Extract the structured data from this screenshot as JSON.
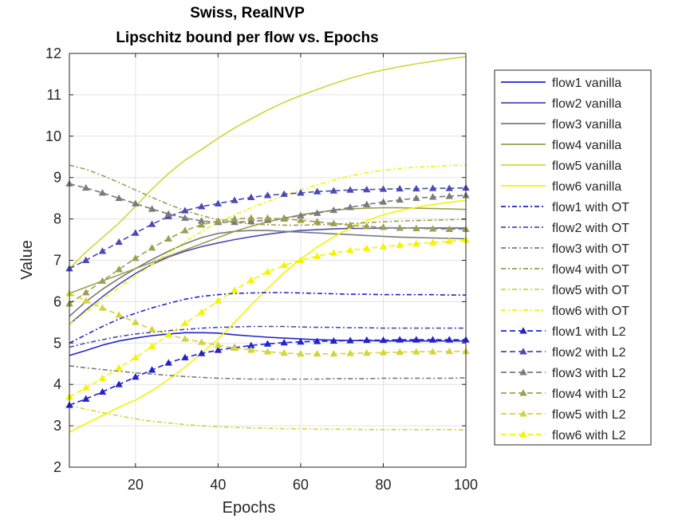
{
  "chart_data": {
    "type": "line",
    "title": [
      "Swiss, RealNVP",
      "Lipschitz bound per flow vs. Epochs"
    ],
    "xlabel": "Epochs",
    "ylabel": "Value",
    "xlim": [
      4,
      100
    ],
    "ylim": [
      2,
      12
    ],
    "xticks": [
      20,
      40,
      60,
      80,
      100
    ],
    "yticks": [
      2,
      3,
      4,
      5,
      6,
      7,
      8,
      9,
      10,
      11,
      12
    ],
    "xtick_labels": [
      "20",
      "40",
      "60",
      "80",
      "100"
    ],
    "ytick_labels": [
      "2",
      "3",
      "4",
      "5",
      "6",
      "7",
      "8",
      "9",
      "10",
      "11",
      "12"
    ],
    "grid": true,
    "legend_position": "outside-right",
    "x": [
      4,
      8,
      12,
      16,
      20,
      24,
      28,
      32,
      36,
      40,
      44,
      48,
      52,
      56,
      60,
      64,
      68,
      72,
      76,
      80,
      84,
      88,
      92,
      96,
      100
    ],
    "series": [
      {
        "name": "flow1 vanilla",
        "color": "#2222cc",
        "style": "solid",
        "marker": "none",
        "values": [
          4.7,
          4.82,
          4.95,
          5.05,
          5.12,
          5.18,
          5.22,
          5.25,
          5.25,
          5.24,
          5.2,
          5.17,
          5.14,
          5.12,
          5.1,
          5.08,
          5.07,
          5.06,
          5.06,
          5.05,
          5.05,
          5.05,
          5.05,
          5.05,
          5.05
        ]
      },
      {
        "name": "flow2 vanilla",
        "color": "#4a4ab5",
        "style": "solid",
        "marker": "none",
        "values": [
          5.45,
          5.8,
          6.12,
          6.42,
          6.68,
          6.9,
          7.08,
          7.22,
          7.33,
          7.42,
          7.5,
          7.57,
          7.63,
          7.68,
          7.72,
          7.74,
          7.76,
          7.77,
          7.77,
          7.78,
          7.78,
          7.78,
          7.78,
          7.78,
          7.78
        ]
      },
      {
        "name": "flow3 vanilla",
        "color": "#7a7a7a",
        "style": "solid",
        "marker": "none",
        "values": [
          5.65,
          6.0,
          6.3,
          6.56,
          6.8,
          7.02,
          7.22,
          7.4,
          7.55,
          7.65,
          7.7,
          7.72,
          7.72,
          7.7,
          7.68,
          7.66,
          7.64,
          7.62,
          7.6,
          7.58,
          7.56,
          7.55,
          7.54,
          7.53,
          7.52
        ]
      },
      {
        "name": "flow4 vanilla",
        "color": "#9e9e50",
        "style": "solid",
        "marker": "none",
        "values": [
          6.2,
          6.35,
          6.5,
          6.65,
          6.8,
          6.95,
          7.1,
          7.25,
          7.4,
          7.55,
          7.7,
          7.82,
          7.93,
          8.02,
          8.1,
          8.16,
          8.21,
          8.24,
          8.26,
          8.27,
          8.27,
          8.26,
          8.25,
          8.24,
          8.23
        ]
      },
      {
        "name": "flow5 vanilla",
        "color": "#d4d43a",
        "style": "solid",
        "marker": "none",
        "values": [
          6.8,
          7.2,
          7.55,
          7.9,
          8.3,
          8.72,
          9.1,
          9.42,
          9.68,
          9.95,
          10.2,
          10.42,
          10.63,
          10.82,
          10.98,
          11.13,
          11.27,
          11.4,
          11.51,
          11.6,
          11.68,
          11.75,
          11.81,
          11.87,
          11.92
        ]
      },
      {
        "name": "flow6 vanilla",
        "color": "#f4f400",
        "style": "solid",
        "marker": "none",
        "values": [
          2.85,
          3.05,
          3.25,
          3.45,
          3.62,
          3.85,
          4.12,
          4.42,
          4.75,
          5.1,
          5.5,
          5.92,
          6.32,
          6.7,
          7.03,
          7.32,
          7.57,
          7.78,
          7.96,
          8.1,
          8.2,
          8.28,
          8.35,
          8.4,
          8.45
        ]
      },
      {
        "name": "flow1 with OT",
        "color": "#2222cc",
        "style": "dashdot",
        "marker": "none",
        "values": [
          5.0,
          5.2,
          5.4,
          5.58,
          5.72,
          5.85,
          5.96,
          6.06,
          6.13,
          6.17,
          6.2,
          6.21,
          6.22,
          6.22,
          6.21,
          6.2,
          6.19,
          6.18,
          6.18,
          6.17,
          6.17,
          6.17,
          6.17,
          6.16,
          6.16
        ]
      },
      {
        "name": "flow2 with OT",
        "color": "#4a4ab5",
        "style": "dashdot",
        "marker": "none",
        "values": [
          4.9,
          5.0,
          5.08,
          5.16,
          5.22,
          5.26,
          5.3,
          5.33,
          5.36,
          5.38,
          5.39,
          5.4,
          5.4,
          5.4,
          5.39,
          5.38,
          5.38,
          5.37,
          5.37,
          5.36,
          5.36,
          5.36,
          5.36,
          5.36,
          5.36
        ]
      },
      {
        "name": "flow3 with OT",
        "color": "#7a7a7a",
        "style": "dashdot",
        "marker": "none",
        "values": [
          4.45,
          4.4,
          4.36,
          4.32,
          4.28,
          4.25,
          4.22,
          4.19,
          4.17,
          4.15,
          4.14,
          4.13,
          4.13,
          4.13,
          4.13,
          4.13,
          4.14,
          4.14,
          4.14,
          4.15,
          4.15,
          4.15,
          4.15,
          4.15,
          4.16
        ]
      },
      {
        "name": "flow4 with OT",
        "color": "#9e9e50",
        "style": "dashdot",
        "marker": "none",
        "values": [
          9.3,
          9.2,
          9.05,
          8.88,
          8.7,
          8.52,
          8.35,
          8.2,
          8.08,
          7.98,
          7.92,
          7.88,
          7.86,
          7.85,
          7.85,
          7.86,
          7.87,
          7.89,
          7.91,
          7.93,
          7.95,
          7.96,
          7.97,
          7.98,
          7.99
        ]
      },
      {
        "name": "flow5 with OT",
        "color": "#d4d43a",
        "style": "dashdot",
        "marker": "none",
        "values": [
          3.5,
          3.4,
          3.32,
          3.24,
          3.17,
          3.11,
          3.07,
          3.03,
          3.0,
          2.98,
          2.96,
          2.95,
          2.94,
          2.93,
          2.93,
          2.92,
          2.92,
          2.92,
          2.91,
          2.91,
          2.91,
          2.91,
          2.91,
          2.91,
          2.9
        ]
      },
      {
        "name": "flow6 with OT",
        "color": "#f4f400",
        "style": "dashdot",
        "marker": "none",
        "values": [
          5.45,
          5.75,
          6.05,
          6.35,
          6.62,
          6.9,
          7.18,
          7.45,
          7.7,
          7.92,
          8.1,
          8.27,
          8.42,
          8.56,
          8.7,
          8.82,
          8.94,
          9.04,
          9.12,
          9.18,
          9.22,
          9.25,
          9.27,
          9.29,
          9.3
        ]
      },
      {
        "name": "flow1 with L2",
        "color": "#2222cc",
        "style": "dashed",
        "marker": "triangle",
        "values": [
          3.5,
          3.65,
          3.82,
          4.0,
          4.18,
          4.35,
          4.52,
          4.65,
          4.75,
          4.83,
          4.89,
          4.94,
          4.98,
          5.01,
          5.03,
          5.04,
          5.05,
          5.06,
          5.07,
          5.07,
          5.08,
          5.08,
          5.08,
          5.08,
          5.08
        ]
      },
      {
        "name": "flow2 with L2",
        "color": "#4a4ab5",
        "style": "dashed",
        "marker": "triangle",
        "values": [
          6.8,
          7.0,
          7.22,
          7.44,
          7.66,
          7.87,
          8.06,
          8.2,
          8.3,
          8.37,
          8.45,
          8.52,
          8.57,
          8.6,
          8.63,
          8.66,
          8.68,
          8.7,
          8.71,
          8.72,
          8.73,
          8.73,
          8.74,
          8.74,
          8.75
        ]
      },
      {
        "name": "flow3 with L2",
        "color": "#7a7a7a",
        "style": "dashed",
        "marker": "triangle",
        "values": [
          8.85,
          8.75,
          8.63,
          8.5,
          8.37,
          8.24,
          8.12,
          8.02,
          7.95,
          7.92,
          7.92,
          7.94,
          7.97,
          8.02,
          8.08,
          8.14,
          8.21,
          8.28,
          8.35,
          8.41,
          8.46,
          8.5,
          8.53,
          8.55,
          8.57
        ]
      },
      {
        "name": "flow4 with L2",
        "color": "#9e9e50",
        "style": "dashed",
        "marker": "triangle",
        "values": [
          5.95,
          6.22,
          6.5,
          6.78,
          7.05,
          7.3,
          7.52,
          7.72,
          7.86,
          7.95,
          8.0,
          8.02,
          8.02,
          8.0,
          7.97,
          7.93,
          7.89,
          7.85,
          7.82,
          7.8,
          7.78,
          7.77,
          7.76,
          7.75,
          7.75
        ]
      },
      {
        "name": "flow5 with L2",
        "color": "#d4d43a",
        "style": "dashed",
        "marker": "triangle",
        "values": [
          6.2,
          6.02,
          5.85,
          5.68,
          5.5,
          5.33,
          5.2,
          5.1,
          5.02,
          4.95,
          4.88,
          4.83,
          4.79,
          4.76,
          4.74,
          4.74,
          4.74,
          4.75,
          4.76,
          4.77,
          4.78,
          4.79,
          4.79,
          4.8,
          4.8
        ]
      },
      {
        "name": "flow6 with L2",
        "color": "#f4f400",
        "style": "dashed",
        "marker": "triangle",
        "values": [
          3.7,
          3.92,
          4.15,
          4.4,
          4.65,
          4.92,
          5.2,
          5.48,
          5.75,
          6.02,
          6.28,
          6.52,
          6.72,
          6.88,
          7.0,
          7.1,
          7.18,
          7.24,
          7.29,
          7.33,
          7.37,
          7.4,
          7.43,
          7.46,
          7.49
        ]
      }
    ]
  }
}
